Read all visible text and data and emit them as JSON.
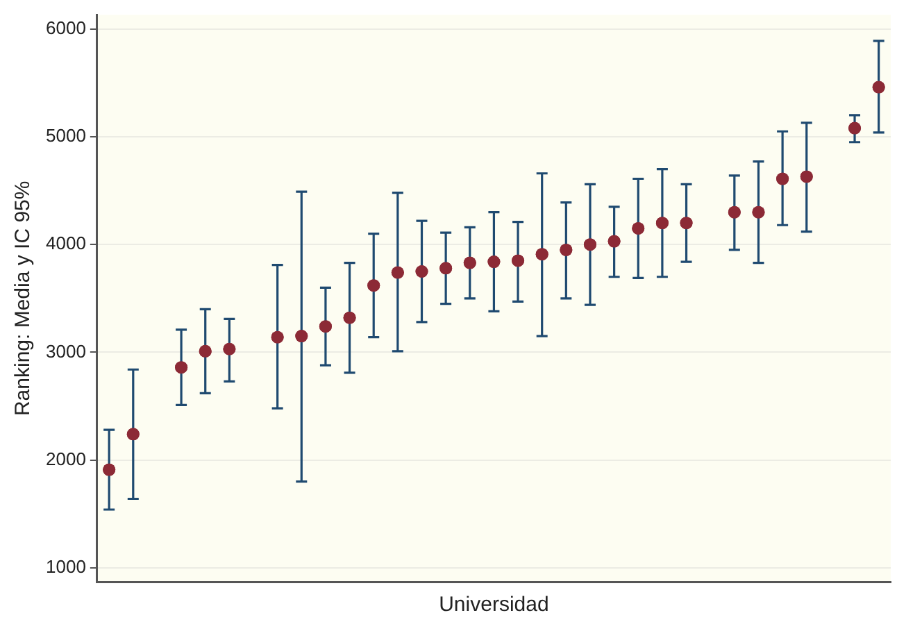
{
  "chart_data": {
    "type": "scatter",
    "xlabel": "Universidad",
    "ylabel": "Ranking: Media y IC 95%",
    "categories": [
      null,
      null,
      null,
      null,
      null,
      null,
      null,
      null,
      null,
      null,
      null,
      null,
      null,
      null,
      null,
      null,
      null,
      null,
      null,
      null,
      null,
      null,
      null,
      null,
      null,
      null,
      null,
      null,
      null,
      null,
      null,
      null,
      null
    ],
    "values": [
      1910,
      2240,
      null,
      2860,
      3010,
      3030,
      null,
      3140,
      3150,
      3240,
      3320,
      3620,
      3740,
      3750,
      3780,
      3830,
      3840,
      3850,
      3910,
      3950,
      4000,
      4030,
      4150,
      4200,
      4200,
      null,
      4300,
      4300,
      4610,
      4630,
      null,
      5080,
      5460
    ],
    "errors": [
      [
        1540,
        2280
      ],
      [
        1640,
        2840
      ],
      null,
      [
        2510,
        3210
      ],
      [
        2620,
        3400
      ],
      [
        2730,
        3310
      ],
      null,
      [
        2480,
        3810
      ],
      [
        1800,
        4490
      ],
      [
        2880,
        3600
      ],
      [
        2810,
        3830
      ],
      [
        3140,
        4100
      ],
      [
        3010,
        4480
      ],
      [
        3280,
        4220
      ],
      [
        3450,
        4110
      ],
      [
        3500,
        4160
      ],
      [
        3380,
        4300
      ],
      [
        3470,
        4210
      ],
      [
        3150,
        4660
      ],
      [
        3500,
        4390
      ],
      [
        3440,
        4560
      ],
      [
        3700,
        4350
      ],
      [
        3690,
        4610
      ],
      [
        3700,
        4700
      ],
      [
        3840,
        4560
      ],
      null,
      [
        3950,
        4640
      ],
      [
        3830,
        4770
      ],
      [
        4180,
        5050
      ],
      [
        4120,
        5130
      ],
      null,
      [
        4950,
        5200
      ],
      [
        5040,
        5890
      ]
    ],
    "color": "#8c2a36",
    "ylim": [
      870,
      6130
    ],
    "yticks": [
      1000,
      2000,
      3000,
      4000,
      5000,
      6000
    ],
    "grid": "y",
    "marker": "circle",
    "legend": false
  }
}
